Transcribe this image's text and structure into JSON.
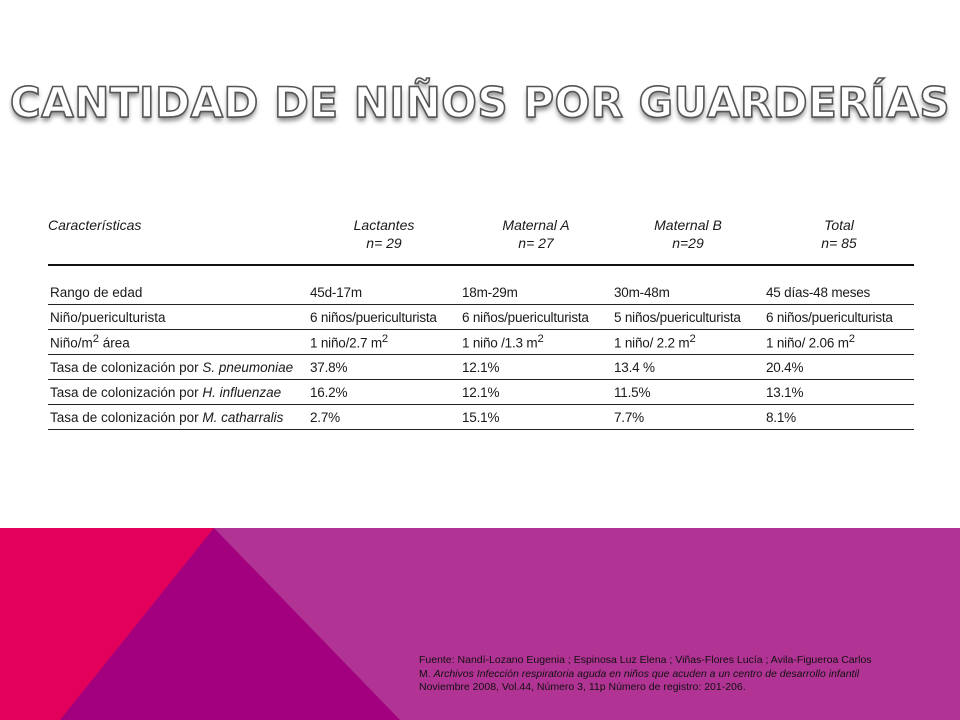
{
  "slide": {
    "title": "CANTIDAD DE NIÑOS POR GUARDERÍAS",
    "colors": {
      "band_magenta": "#b13393",
      "band_purple": "#a2007e",
      "band_red": "#e2005a"
    }
  },
  "table": {
    "header": {
      "characteristics": "Características",
      "columns": [
        {
          "name": "Lactantes",
          "n": "n= 29"
        },
        {
          "name": "Maternal A",
          "n": "n= 27"
        },
        {
          "name": "Maternal B",
          "n": "n=29"
        },
        {
          "name": "Total",
          "n": "n= 85"
        }
      ]
    },
    "rows": [
      {
        "label": "Rango de edad",
        "values": [
          "45d-17m",
          "18m-29m",
          "30m-48m",
          "45 días-48 meses"
        ]
      },
      {
        "label": "Niño/puericulturista",
        "values": [
          "6 niños/puericulturista",
          "6 niños/puericulturista",
          "5 niños/puericulturista",
          "6 niños/puericulturista"
        ]
      },
      {
        "label_pre": "Niño/m",
        "label_sup": "2",
        "label_post": " área",
        "values": [
          {
            "pre": "1 niño/2.7 m",
            "sup": "2"
          },
          {
            "pre": "1 niño /1.3 m",
            "sup": "2"
          },
          {
            "pre": "1 niño/ 2.2 m",
            "sup": "2"
          },
          {
            "pre": "1 niño/ 2.06 m",
            "sup": "2"
          }
        ]
      },
      {
        "label_pre": "Tasa de colonización por ",
        "label_org": "S. pneumoniae",
        "values": [
          "37.8%",
          "12.1%",
          "13.4 %",
          "20.4%"
        ]
      },
      {
        "label_pre": "Tasa de colonización por ",
        "label_org": "H. influenzae",
        "values": [
          "16.2%",
          "12.1%",
          "11.5%",
          "13.1%"
        ]
      },
      {
        "label_pre": "Tasa de colonización por ",
        "label_org": "M. catharralis",
        "values": [
          "2.7%",
          "15.1%",
          "7.7%",
          "8.1%"
        ]
      }
    ]
  },
  "source": {
    "line1": "Fuente: Nandí-Lozano Eugenia ; Espinosa Luz Elena ; Viñas-Flores Lucía ; Avila-Figueroa Carlos",
    "line2_pre": "M. ",
    "line2_italic": "Archivos  Infección respiratoria aguda en niños que acuden a un centro de desarrollo infantil",
    "line3": "Noviembre 2008, Vol.44, Número 3, 11p  Número de registro: 201-206."
  }
}
